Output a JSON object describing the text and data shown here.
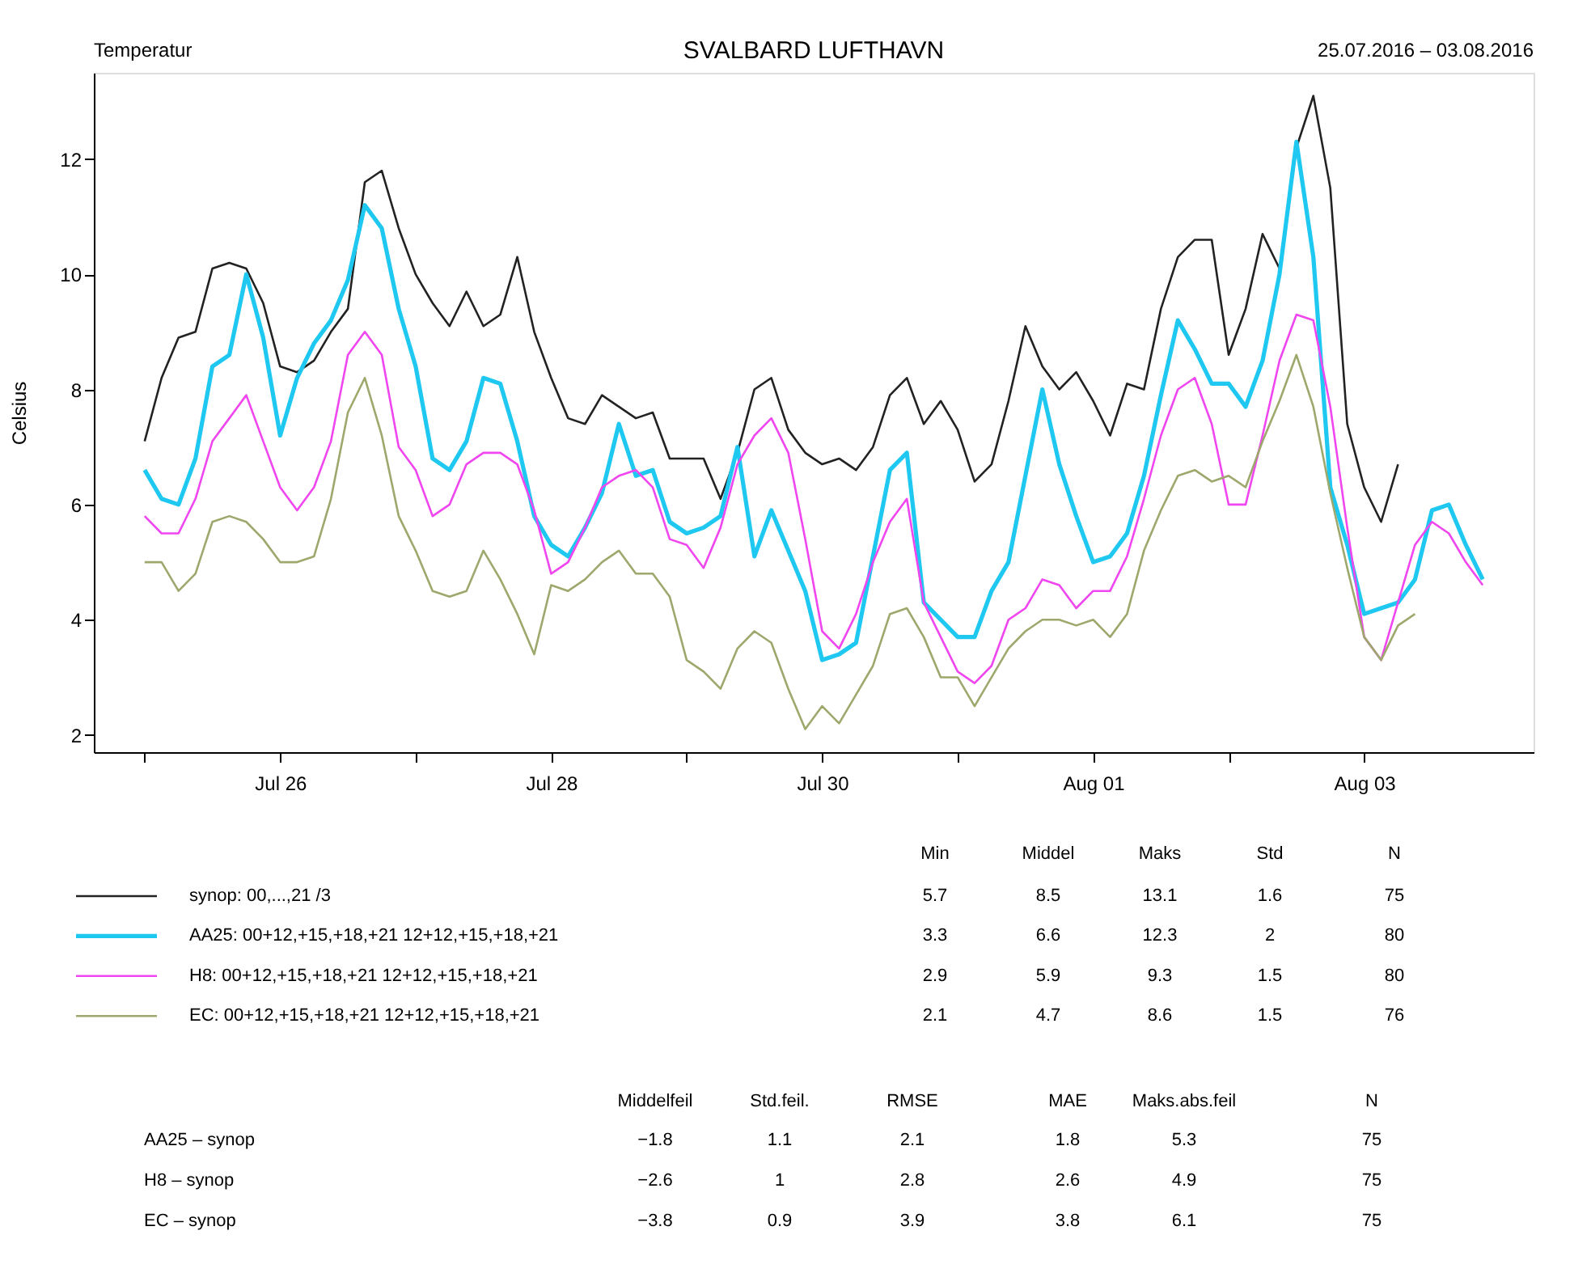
{
  "chart_data": {
    "type": "line",
    "title": "SVALBARD LUFTHAVN",
    "subtitle": "25.07.2016 – 03.08.2016",
    "ylabel": "Celsius",
    "x": [
      "2016-07-25T00:00",
      "2016-07-25T03:00",
      "2016-07-25T06:00",
      "2016-07-25T09:00",
      "2016-07-25T12:00",
      "2016-07-25T15:00",
      "2016-07-25T18:00",
      "2016-07-25T21:00",
      "2016-07-26T00:00",
      "2016-07-26T03:00",
      "2016-07-26T06:00",
      "2016-07-26T09:00",
      "2016-07-26T12:00",
      "2016-07-26T15:00",
      "2016-07-26T18:00",
      "2016-07-26T21:00",
      "2016-07-27T00:00",
      "2016-07-27T03:00",
      "2016-07-27T06:00",
      "2016-07-27T09:00",
      "2016-07-27T12:00",
      "2016-07-27T15:00",
      "2016-07-27T18:00",
      "2016-07-27T21:00",
      "2016-07-28T00:00",
      "2016-07-28T03:00",
      "2016-07-28T06:00",
      "2016-07-28T09:00",
      "2016-07-28T12:00",
      "2016-07-28T15:00",
      "2016-07-28T18:00",
      "2016-07-28T21:00",
      "2016-07-29T00:00",
      "2016-07-29T03:00",
      "2016-07-29T06:00",
      "2016-07-29T09:00",
      "2016-07-29T12:00",
      "2016-07-29T15:00",
      "2016-07-29T18:00",
      "2016-07-29T21:00",
      "2016-07-30T00:00",
      "2016-07-30T03:00",
      "2016-07-30T06:00",
      "2016-07-30T09:00",
      "2016-07-30T12:00",
      "2016-07-30T15:00",
      "2016-07-30T18:00",
      "2016-07-30T21:00",
      "2016-07-31T00:00",
      "2016-07-31T03:00",
      "2016-07-31T06:00",
      "2016-07-31T09:00",
      "2016-07-31T12:00",
      "2016-07-31T15:00",
      "2016-07-31T18:00",
      "2016-07-31T21:00",
      "2016-08-01T00:00",
      "2016-08-01T03:00",
      "2016-08-01T06:00",
      "2016-08-01T09:00",
      "2016-08-01T12:00",
      "2016-08-01T15:00",
      "2016-08-01T18:00",
      "2016-08-01T21:00",
      "2016-08-02T00:00",
      "2016-08-02T03:00",
      "2016-08-02T06:00",
      "2016-08-02T09:00",
      "2016-08-02T12:00",
      "2016-08-02T15:00",
      "2016-08-02T18:00",
      "2016-08-02T21:00",
      "2016-08-03T00:00",
      "2016-08-03T03:00",
      "2016-08-03T06:00",
      "2016-08-03T09:00",
      "2016-08-03T12:00",
      "2016-08-03T15:00",
      "2016-08-03T18:00",
      "2016-08-03T21:00"
    ],
    "series": [
      {
        "name": "synop: 00,...,21 /3",
        "color": "#222222",
        "values": [
          7.1,
          8.2,
          8.9,
          9.0,
          10.1,
          10.2,
          10.1,
          9.5,
          8.4,
          8.3,
          8.5,
          9.0,
          9.4,
          11.6,
          11.8,
          10.8,
          10.0,
          9.5,
          9.1,
          9.7,
          9.1,
          9.3,
          10.3,
          9.0,
          8.2,
          7.5,
          7.4,
          7.9,
          7.7,
          7.5,
          7.6,
          6.8,
          6.8,
          6.8,
          6.1,
          6.9,
          8.0,
          8.2,
          7.3,
          6.9,
          6.7,
          6.8,
          6.6,
          7.0,
          7.9,
          8.2,
          7.4,
          7.8,
          7.3,
          6.4,
          6.7,
          7.8,
          9.1,
          8.4,
          8.0,
          8.3,
          7.8,
          7.2,
          8.1,
          8.0,
          9.4,
          10.3,
          10.6,
          10.6,
          8.6,
          9.4,
          10.7,
          10.1,
          12.2,
          13.1,
          11.5,
          7.4,
          6.3,
          5.7,
          6.7,
          null,
          null,
          null,
          null,
          null
        ]
      },
      {
        "name": "AA25: 00+12,+15,+18,+21 12+12,+15,+18,+21",
        "color": "#1ec8f0",
        "values": [
          6.6,
          6.1,
          6.0,
          6.8,
          8.4,
          8.6,
          10.0,
          8.9,
          7.2,
          8.2,
          8.8,
          9.2,
          9.9,
          11.2,
          10.8,
          9.4,
          8.4,
          6.8,
          6.6,
          7.1,
          8.2,
          8.1,
          7.1,
          5.8,
          5.3,
          5.1,
          5.6,
          6.2,
          7.4,
          6.5,
          6.6,
          5.7,
          5.5,
          5.6,
          5.8,
          7.0,
          5.1,
          5.9,
          5.2,
          4.5,
          3.3,
          3.4,
          3.6,
          5.1,
          6.6,
          6.9,
          4.3,
          4.0,
          3.7,
          3.7,
          4.5,
          5.0,
          6.5,
          8.0,
          6.7,
          5.8,
          5.0,
          5.1,
          5.5,
          6.5,
          7.9,
          9.2,
          8.7,
          8.1,
          8.1,
          7.7,
          8.5,
          10.0,
          12.3,
          10.3,
          6.3,
          5.3,
          4.1,
          4.2,
          4.3,
          4.7,
          5.9,
          6.0,
          5.3,
          4.7
        ]
      },
      {
        "name": "H8: 00+12,+15,+18,+21 12+12,+15,+18,+21",
        "color": "#f046f0",
        "values": [
          5.8,
          5.5,
          5.5,
          6.1,
          7.1,
          7.5,
          7.9,
          7.1,
          6.3,
          5.9,
          6.3,
          7.1,
          8.6,
          9.0,
          8.6,
          7.0,
          6.6,
          5.8,
          6.0,
          6.7,
          6.9,
          6.9,
          6.7,
          5.9,
          4.8,
          5.0,
          5.6,
          6.3,
          6.5,
          6.6,
          6.3,
          5.4,
          5.3,
          4.9,
          5.6,
          6.7,
          7.2,
          7.5,
          6.9,
          5.4,
          3.8,
          3.5,
          4.1,
          5.0,
          5.7,
          6.1,
          4.3,
          3.7,
          3.1,
          2.9,
          3.2,
          4.0,
          4.2,
          4.7,
          4.6,
          4.2,
          4.5,
          4.5,
          5.1,
          6.1,
          7.2,
          8.0,
          8.2,
          7.4,
          6.0,
          6.0,
          7.2,
          8.5,
          9.3,
          9.2,
          7.7,
          5.6,
          3.7,
          3.3,
          4.3,
          5.3,
          5.7,
          5.5,
          5.0,
          4.6
        ]
      },
      {
        "name": "EC: 00+12,+15,+18,+21 12+12,+15,+18,+21",
        "color": "#9ca86c",
        "values": [
          5.0,
          5.0,
          4.5,
          4.8,
          5.7,
          5.8,
          5.7,
          5.4,
          5.0,
          5.0,
          5.1,
          6.1,
          7.6,
          8.2,
          7.2,
          5.8,
          5.2,
          4.5,
          4.4,
          4.5,
          5.2,
          4.7,
          4.1,
          3.4,
          4.6,
          4.5,
          4.7,
          5.0,
          5.2,
          4.8,
          4.8,
          4.4,
          3.3,
          3.1,
          2.8,
          3.5,
          3.8,
          3.6,
          2.8,
          2.1,
          2.5,
          2.2,
          2.7,
          3.2,
          4.1,
          4.2,
          3.7,
          3.0,
          3.0,
          2.5,
          3.0,
          3.5,
          3.8,
          4.0,
          4.0,
          3.9,
          4.0,
          3.7,
          4.1,
          5.2,
          5.9,
          6.5,
          6.6,
          6.4,
          6.5,
          6.3,
          7.1,
          7.8,
          8.6,
          7.7,
          6.2,
          4.9,
          3.7,
          3.3,
          3.9,
          4.1,
          null,
          null,
          null,
          null
        ]
      }
    ],
    "xlim": [
      "2016-07-24T15:00",
      "2016-08-04T06:00"
    ],
    "xticks": [
      {
        "value": "2016-07-25T00:00",
        "label": null
      },
      {
        "value": "2016-07-26T00:00",
        "label": "Jul 26"
      },
      {
        "value": "2016-07-27T00:00",
        "label": null
      },
      {
        "value": "2016-07-28T00:00",
        "label": "Jul 28"
      },
      {
        "value": "2016-07-29T00:00",
        "label": null
      },
      {
        "value": "2016-07-30T00:00",
        "label": "Jul 30"
      },
      {
        "value": "2016-07-31T00:00",
        "label": null
      },
      {
        "value": "2016-08-01T00:00",
        "label": "Aug 01"
      },
      {
        "value": "2016-08-02T00:00",
        "label": null
      },
      {
        "value": "2016-08-03T00:00",
        "label": "Aug 03"
      }
    ],
    "ylim": [
      1.7,
      13.5
    ],
    "yticks": [
      2,
      4,
      6,
      8,
      10,
      12
    ],
    "grid": false,
    "legend": "bottom",
    "marker": "none",
    "line_style": "solid",
    "annotations": [
      "Temperatur",
      "Min",
      "Middel",
      "Maks",
      "Std",
      "N",
      "5.7",
      "8.5",
      "13.1",
      "1.6",
      "75",
      "3.3",
      "6.6",
      "12.3",
      "2",
      "80",
      "2.9",
      "5.9",
      "9.3",
      "1.5",
      "80",
      "2.1",
      "4.7",
      "8.6",
      "1.5",
      "76",
      "Middelfeil",
      "Std.feil.",
      "RMSE",
      "MAE",
      "Maks.abs.feil",
      "N",
      "AA25 – synop",
      "−1.8",
      "1.1",
      "2.1",
      "1.8",
      "5.3",
      "75",
      "H8 – synop",
      "−2.6",
      "1",
      "2.8",
      "2.6",
      "4.9",
      "75",
      "EC – synop",
      "−3.8",
      "0.9",
      "3.9",
      "3.8",
      "6.1",
      "75"
    ]
  }
}
